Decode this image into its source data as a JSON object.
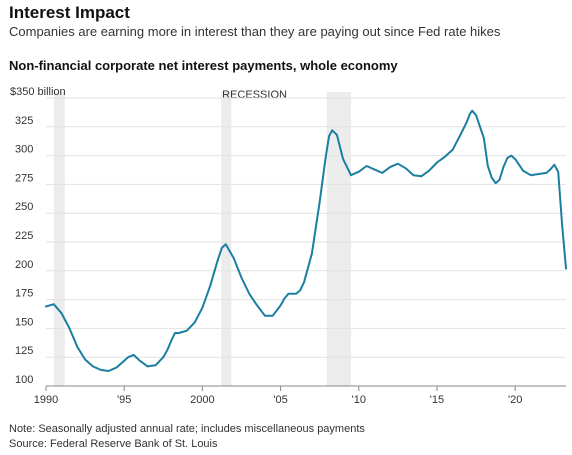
{
  "header": {
    "title": "Interest Impact",
    "subtitle": "Companies are earning more in interest than they are paying out since Fed rate hikes"
  },
  "footer": {
    "note": "Note: Seasonally adjusted annual rate; includes miscellaneous payments",
    "source": "Source: Federal Reserve Bank of St. Louis"
  },
  "colors": {
    "line": "#1a7fa0",
    "recession": "#ececec",
    "grid": "#e2e2e2"
  },
  "chart_data": {
    "type": "line",
    "title": "Non-financial corporate net interest payments, whole economy",
    "xlabel": "",
    "ylabel": "",
    "xlim": [
      1990,
      2023.25
    ],
    "ylim": [
      100,
      350
    ],
    "grid": true,
    "legend": "none",
    "y_ticks": [
      100,
      125,
      150,
      175,
      200,
      225,
      250,
      275,
      300,
      325,
      350
    ],
    "y_tick_labels": [
      "100",
      "125",
      "150",
      "175",
      "200",
      "225",
      "250",
      "275",
      "300",
      "325",
      "$350 billion"
    ],
    "x_ticks": [
      1990,
      1995,
      2000,
      2005,
      2010,
      2015,
      2020
    ],
    "x_tick_labels": [
      "1990",
      "'95",
      "2000",
      "'05",
      "'10",
      "'15",
      "'20"
    ],
    "recessions": [
      {
        "start": 1990.5,
        "end": 1991.2
      },
      {
        "start": 2001.2,
        "end": 2001.85
      },
      {
        "start": 2007.95,
        "end": 2009.5
      }
    ],
    "annotations": [
      {
        "text": "RECESSION",
        "x": 2001.2
      }
    ],
    "series": [
      {
        "x": [
          1990.0,
          1990.5,
          1991.0,
          1991.5,
          1992.0,
          1992.5,
          1993.0,
          1993.5,
          1994.0,
          1994.5,
          1995.0,
          1995.25,
          1995.6,
          1996.0,
          1996.5,
          1997.0,
          1997.5,
          1997.75,
          1998.0,
          1998.25,
          1998.5,
          1999.0,
          1999.5,
          2000.0,
          2000.5,
          2001.0,
          2001.25,
          2001.5,
          2002.0,
          2002.5,
          2003.0,
          2003.5,
          2004.0,
          2004.5,
          2005.0,
          2005.25,
          2005.5,
          2006.0,
          2006.25,
          2006.5,
          2007.0,
          2007.5,
          2007.9,
          2008.1,
          2008.3,
          2008.6,
          2009.0,
          2009.5,
          2010.0,
          2010.5,
          2011.0,
          2011.5,
          2012.0,
          2012.5,
          2013.0,
          2013.5,
          2014.0,
          2014.5,
          2015.0,
          2015.5,
          2016.0,
          2016.5,
          2016.9,
          2017.1,
          2017.25,
          2017.5,
          2018.0,
          2018.25,
          2018.5,
          2018.75,
          2019.0,
          2019.25,
          2019.5,
          2019.75,
          2020.0,
          2020.5,
          2021.0,
          2021.5,
          2022.0,
          2022.25,
          2022.5,
          2022.75,
          2023.0,
          2023.25
        ],
        "values": [
          169,
          171,
          163,
          150,
          134,
          123,
          117,
          114,
          113,
          116,
          122,
          125,
          127,
          122,
          117,
          118,
          125,
          131,
          139,
          146,
          146,
          148,
          155,
          168,
          187,
          210,
          220,
          223,
          211,
          194,
          180,
          170,
          161,
          161,
          170,
          176,
          180,
          180,
          183,
          190,
          215,
          260,
          300,
          317,
          322,
          318,
          297,
          283,
          286,
          291,
          288,
          285,
          290,
          293,
          289,
          283,
          282,
          287,
          294,
          299,
          305,
          318,
          329,
          336,
          339,
          335,
          315,
          291,
          281,
          276,
          279,
          290,
          298,
          300,
          297,
          287,
          283,
          284,
          285,
          288,
          292,
          286,
          240,
          202
        ]
      }
    ]
  }
}
